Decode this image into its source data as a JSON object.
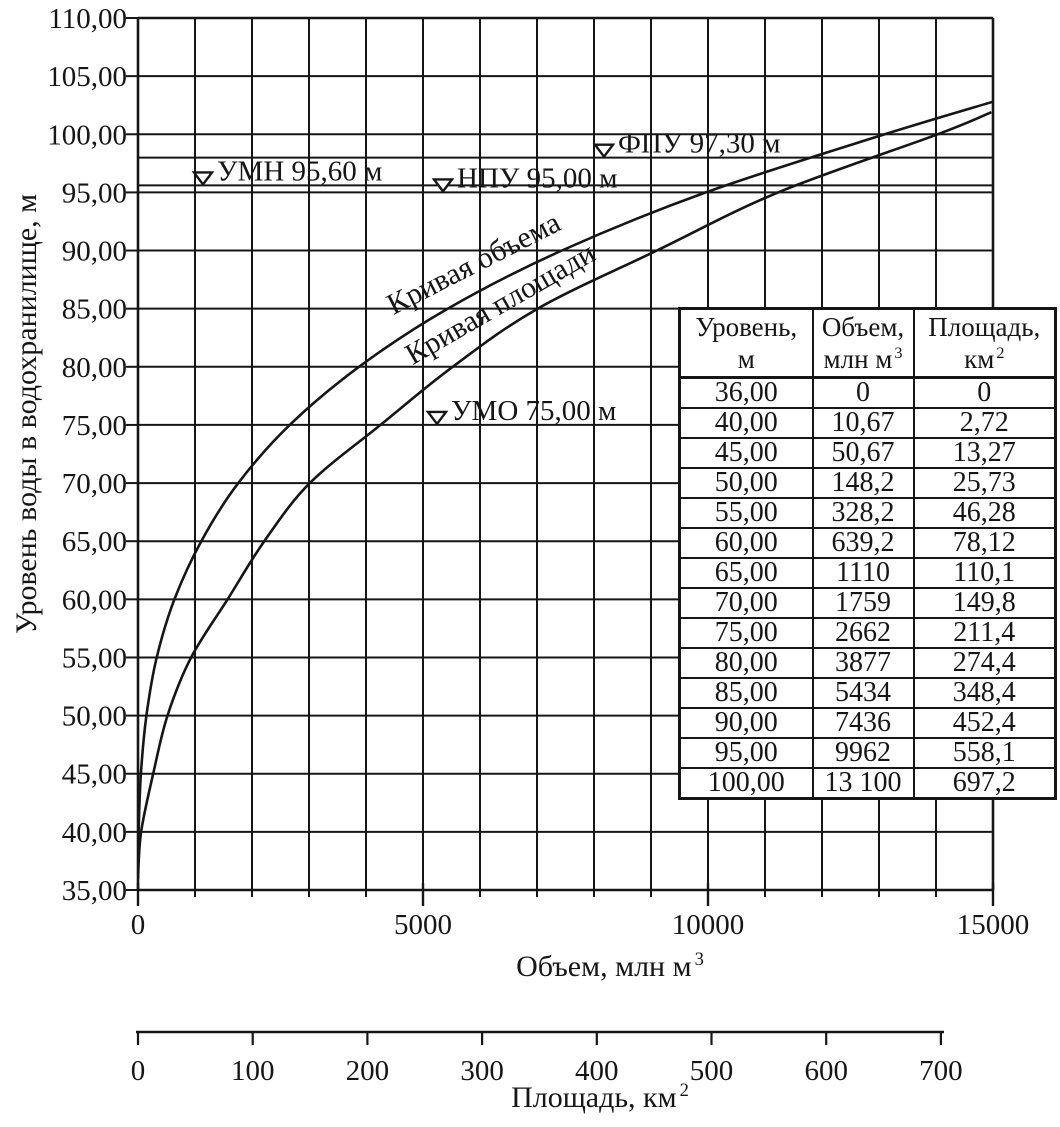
{
  "colors": {
    "ink": "#161616",
    "paper": "#ffffff"
  },
  "chart_data": {
    "type": "line",
    "title": "",
    "ylabel": "Уровень воды в водохранилище, м",
    "xlabel_volume": "Объем, млн м",
    "xlabel_volume_sup": "3",
    "xlabel_area": "Площадь, км",
    "xlabel_area_sup": "2",
    "ylim": [
      35,
      110
    ],
    "xlim_volume": [
      0,
      15000
    ],
    "xlim_area": [
      0,
      700
    ],
    "grid": "on",
    "y_ticks": [
      {
        "value": 110,
        "label": "110,00"
      },
      {
        "value": 105,
        "label": "105,00"
      },
      {
        "value": 100,
        "label": "100,00"
      },
      {
        "value": 95,
        "label": "95,00"
      },
      {
        "value": 90,
        "label": "90,00"
      },
      {
        "value": 85,
        "label": "85,00"
      },
      {
        "value": 80,
        "label": "80,00"
      },
      {
        "value": 75,
        "label": "75,00"
      },
      {
        "value": 70,
        "label": "70,00"
      },
      {
        "value": 65,
        "label": "65,00"
      },
      {
        "value": 60,
        "label": "60,00"
      },
      {
        "value": 55,
        "label": "55,00"
      },
      {
        "value": 50,
        "label": "50,00"
      },
      {
        "value": 45,
        "label": "45,00"
      },
      {
        "value": 40,
        "label": "40,00"
      },
      {
        "value": 35,
        "label": "35,00"
      }
    ],
    "x_ticks_volume": [
      {
        "value": 0,
        "label": "0"
      },
      {
        "value": 5000,
        "label": "5000"
      },
      {
        "value": 10000,
        "label": "10000"
      },
      {
        "value": 15000,
        "label": "15000"
      }
    ],
    "x_minor_step_volume": 1000,
    "x_ticks_area": [
      {
        "value": 0,
        "label": "0"
      },
      {
        "value": 100,
        "label": "100"
      },
      {
        "value": 200,
        "label": "200"
      },
      {
        "value": 300,
        "label": "300"
      },
      {
        "value": 400,
        "label": "400"
      },
      {
        "value": 500,
        "label": "500"
      },
      {
        "value": 600,
        "label": "600"
      },
      {
        "value": 700,
        "label": "700"
      }
    ],
    "series": [
      {
        "name": "Кривая объема",
        "axis": "volume",
        "points": [
          [
            0,
            36
          ],
          [
            10.67,
            40
          ],
          [
            50.67,
            45
          ],
          [
            148.2,
            50
          ],
          [
            328.2,
            55
          ],
          [
            639.2,
            60
          ],
          [
            1110,
            65
          ],
          [
            1759,
            70
          ],
          [
            2662,
            75
          ],
          [
            3877,
            80
          ],
          [
            5434,
            85
          ],
          [
            7436,
            90
          ],
          [
            9962,
            95
          ],
          [
            13100,
            100
          ]
        ]
      },
      {
        "name": "Кривая площади",
        "axis": "area",
        "points": [
          [
            0,
            36
          ],
          [
            2.72,
            40
          ],
          [
            13.27,
            45
          ],
          [
            25.73,
            50
          ],
          [
            46.28,
            55
          ],
          [
            78.12,
            60
          ],
          [
            110.1,
            65
          ],
          [
            149.8,
            70
          ],
          [
            211.4,
            75
          ],
          [
            274.4,
            80
          ],
          [
            348.4,
            85
          ],
          [
            452.4,
            90
          ],
          [
            558.1,
            95
          ],
          [
            697.2,
            100
          ]
        ]
      }
    ],
    "markers": [
      {
        "id": "UMN",
        "label": "УМН 95,60 м",
        "level": 95.6,
        "full_line": true
      },
      {
        "id": "NPU",
        "label": "НПУ 95,00 м",
        "level": 95.0,
        "full_line": false
      },
      {
        "id": "FPU",
        "label": "ФПУ 97,30 м",
        "level": 97.3,
        "full_line": true
      },
      {
        "id": "UMO",
        "label": "УМО 75,00 м",
        "level": 75.0,
        "full_line": false
      }
    ]
  },
  "table": {
    "headers": [
      {
        "line1": "Уровень,",
        "line2": "м",
        "sup": ""
      },
      {
        "line1": "Объем,",
        "line2": "млн м",
        "sup": "3"
      },
      {
        "line1": "Площадь,",
        "line2": "км",
        "sup": "2"
      }
    ],
    "rows": [
      [
        "36,00",
        "0",
        "0"
      ],
      [
        "40,00",
        "10,67",
        "2,72"
      ],
      [
        "45,00",
        "50,67",
        "13,27"
      ],
      [
        "50,00",
        "148,2",
        "25,73"
      ],
      [
        "55,00",
        "328,2",
        "46,28"
      ],
      [
        "60,00",
        "639,2",
        "78,12"
      ],
      [
        "65,00",
        "1110",
        "110,1"
      ],
      [
        "70,00",
        "1759",
        "149,8"
      ],
      [
        "75,00",
        "2662",
        "211,4"
      ],
      [
        "80,00",
        "3877",
        "274,4"
      ],
      [
        "85,00",
        "5434",
        "348,4"
      ],
      [
        "90,00",
        "7436",
        "452,4"
      ],
      [
        "95,00",
        "9962",
        "558,1"
      ],
      [
        "100,00",
        "13 100",
        "697,2"
      ]
    ]
  }
}
